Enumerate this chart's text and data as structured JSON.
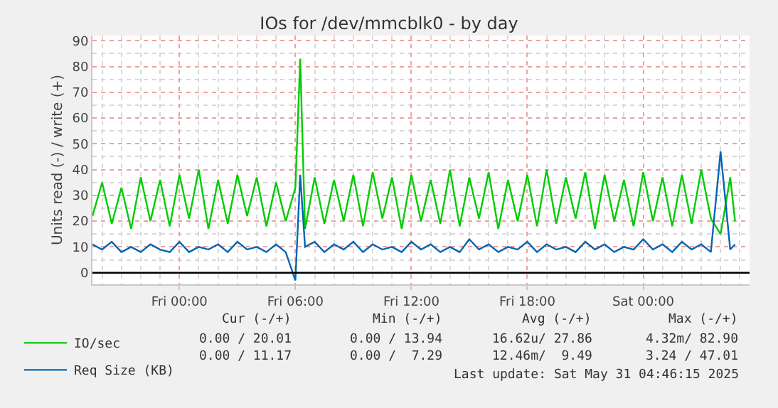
{
  "chart_data": {
    "type": "line",
    "title": "IOs for /dev/mmcblk0 - by day",
    "ylabel": "Units read (-) / write (+)",
    "x": [
      "2025-05-29T19:30",
      "2025-05-29T20:00",
      "2025-05-29T20:30",
      "2025-05-29T21:00",
      "2025-05-29T21:30",
      "2025-05-29T22:00",
      "2025-05-29T22:30",
      "2025-05-29T23:00",
      "2025-05-29T23:30",
      "2025-05-30T00:00",
      "2025-05-30T00:30",
      "2025-05-30T01:00",
      "2025-05-30T01:30",
      "2025-05-30T02:00",
      "2025-05-30T02:30",
      "2025-05-30T03:00",
      "2025-05-30T03:30",
      "2025-05-30T04:00",
      "2025-05-30T04:30",
      "2025-05-30T05:00",
      "2025-05-30T05:30",
      "2025-05-30T06:00",
      "2025-05-30T06:15",
      "2025-05-30T06:30",
      "2025-05-30T07:00",
      "2025-05-30T07:30",
      "2025-05-30T08:00",
      "2025-05-30T08:30",
      "2025-05-30T09:00",
      "2025-05-30T09:30",
      "2025-05-30T10:00",
      "2025-05-30T10:30",
      "2025-05-30T11:00",
      "2025-05-30T11:30",
      "2025-05-30T12:00",
      "2025-05-30T12:30",
      "2025-05-30T13:00",
      "2025-05-30T13:30",
      "2025-05-30T14:00",
      "2025-05-30T14:30",
      "2025-05-30T15:00",
      "2025-05-30T15:30",
      "2025-05-30T16:00",
      "2025-05-30T16:30",
      "2025-05-30T17:00",
      "2025-05-30T17:30",
      "2025-05-30T18:00",
      "2025-05-30T18:30",
      "2025-05-30T19:00",
      "2025-05-30T19:30",
      "2025-05-30T20:00",
      "2025-05-30T20:30",
      "2025-05-30T21:00",
      "2025-05-30T21:30",
      "2025-05-30T22:00",
      "2025-05-30T22:30",
      "2025-05-30T23:00",
      "2025-05-30T23:30",
      "2025-05-31T00:00",
      "2025-05-31T00:30",
      "2025-05-31T01:00",
      "2025-05-31T01:30",
      "2025-05-31T02:00",
      "2025-05-31T02:30",
      "2025-05-31T03:00",
      "2025-05-31T03:30",
      "2025-05-31T04:00",
      "2025-05-31T04:30",
      "2025-05-31T04:45"
    ],
    "series": [
      {
        "name": "IO/sec",
        "color": "#00cc00",
        "values": [
          22,
          35,
          19,
          33,
          17,
          37,
          20,
          36,
          18,
          38,
          21,
          40,
          17,
          36,
          19,
          38,
          22,
          37,
          18,
          35,
          20,
          33,
          83,
          17,
          37,
          19,
          36,
          20,
          38,
          18,
          39,
          21,
          37,
          17,
          38,
          20,
          36,
          19,
          40,
          18,
          37,
          21,
          39,
          17,
          36,
          20,
          38,
          18,
          40,
          19,
          37,
          21,
          39,
          17,
          38,
          20,
          36,
          18,
          39,
          20,
          37,
          18,
          38,
          19,
          40,
          21,
          15,
          37,
          20
        ]
      },
      {
        "name": "Req Size (KB)",
        "color": "#0066b3",
        "values": [
          11,
          9,
          12,
          8,
          10,
          8,
          11,
          9,
          8,
          12,
          8,
          10,
          9,
          11,
          8,
          12,
          9,
          10,
          8,
          11,
          8,
          -3,
          38,
          10,
          12,
          8,
          11,
          9,
          12,
          8,
          11,
          9,
          10,
          8,
          12,
          9,
          11,
          8,
          10,
          8,
          13,
          9,
          11,
          8,
          10,
          9,
          12,
          8,
          11,
          9,
          10,
          8,
          12,
          9,
          11,
          8,
          10,
          9,
          13,
          9,
          11,
          8,
          12,
          9,
          11,
          8,
          47,
          9,
          11
        ]
      }
    ],
    "xlim": [
      "2025-05-29T19:30",
      "2025-05-31T05:30"
    ],
    "xticks": [
      {
        "value": "2025-05-30T00:00",
        "label": "Fri 00:00"
      },
      {
        "value": "2025-05-30T06:00",
        "label": "Fri 06:00"
      },
      {
        "value": "2025-05-30T12:00",
        "label": "Fri 12:00"
      },
      {
        "value": "2025-05-30T18:00",
        "label": "Fri 18:00"
      },
      {
        "value": "2025-05-31T00:00",
        "label": "Sat 00:00"
      }
    ],
    "ylim": [
      -4.5,
      92
    ],
    "yticks": [
      0,
      10,
      20,
      30,
      40,
      50,
      60,
      70,
      80,
      90
    ],
    "grid": true,
    "legend": "bottom left",
    "marker": "none",
    "line_style": "solid",
    "ref_lines": [
      {
        "axis": "y",
        "value": 0,
        "color": "#000000"
      }
    ],
    "annotations": [
      "Cur (-/+)",
      "Min (-/+)",
      "Avg (-/+)",
      "Max (-/+)",
      "0.00 / 20.01",
      "0.00 / 13.94",
      "16.62u/ 27.86",
      "4.32m/ 82.90",
      "0.00 / 11.17",
      "0.00 /  7.29",
      "12.46m/  9.49",
      "3.24 / 47.01",
      "Last update: Sat May 31 04:46:15 2025"
    ]
  }
}
